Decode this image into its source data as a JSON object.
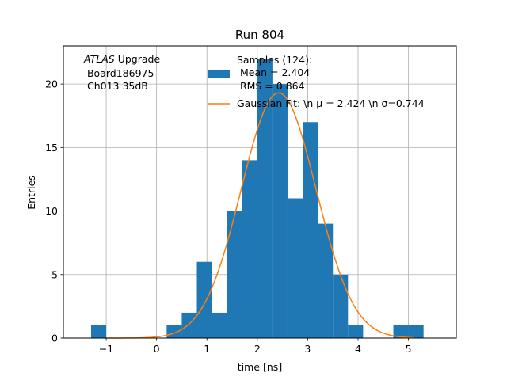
{
  "chart_data": {
    "type": "bar",
    "title": "Run 804",
    "xlabel": "time [ns]",
    "ylabel": "Entries",
    "xlim": [
      -1.85,
      5.95
    ],
    "ylim": [
      0,
      23
    ],
    "xticks": [
      -1,
      0,
      1,
      2,
      3,
      4,
      5
    ],
    "yticks": [
      0,
      5,
      10,
      15,
      20
    ],
    "grid": true,
    "bar_color": "#1f77b4",
    "line_color": "#ff7f0e",
    "bin_width": 0.3,
    "histogram": {
      "name": "Samples (124):\n Mean = 2.404\n RMS = 0.864",
      "bins": [
        {
          "x0": -1.3,
          "count": 1
        },
        {
          "x0": 0.2,
          "count": 1
        },
        {
          "x0": 0.5,
          "count": 2
        },
        {
          "x0": 0.8,
          "count": 6
        },
        {
          "x0": 1.1,
          "count": 2
        },
        {
          "x0": 1.4,
          "count": 10
        },
        {
          "x0": 1.7,
          "count": 14
        },
        {
          "x0": 2.0,
          "count": 22
        },
        {
          "x0": 2.3,
          "count": 20
        },
        {
          "x0": 2.6,
          "count": 11
        },
        {
          "x0": 2.9,
          "count": 17
        },
        {
          "x0": 3.2,
          "count": 9
        },
        {
          "x0": 3.5,
          "count": 5
        },
        {
          "x0": 3.8,
          "count": 1
        },
        {
          "x0": 4.7,
          "count": 1
        },
        {
          "x0": 5.0,
          "count": 1
        }
      ]
    },
    "fit": {
      "name": "Gaussian Fit: \\n $\\mu$ = 2.424 \\n $\\sigma$=0.744",
      "label_text": "Gaussian Fit: \\n μ = 2.424 \\n σ=0.744",
      "mu": 2.424,
      "sigma": 0.744,
      "amplitude": 19.3,
      "x_range": [
        -1.0,
        5.1
      ]
    },
    "legend": {
      "placement": "top-right",
      "hist_lines": [
        "Samples (124):",
        " Mean = 2.404",
        " RMS = 0.864"
      ]
    },
    "annotation": {
      "line1_italic": "ATLAS",
      "line1_rest": " Upgrade",
      "line2": " Board186975",
      "line3": " Ch013 35dB"
    }
  }
}
